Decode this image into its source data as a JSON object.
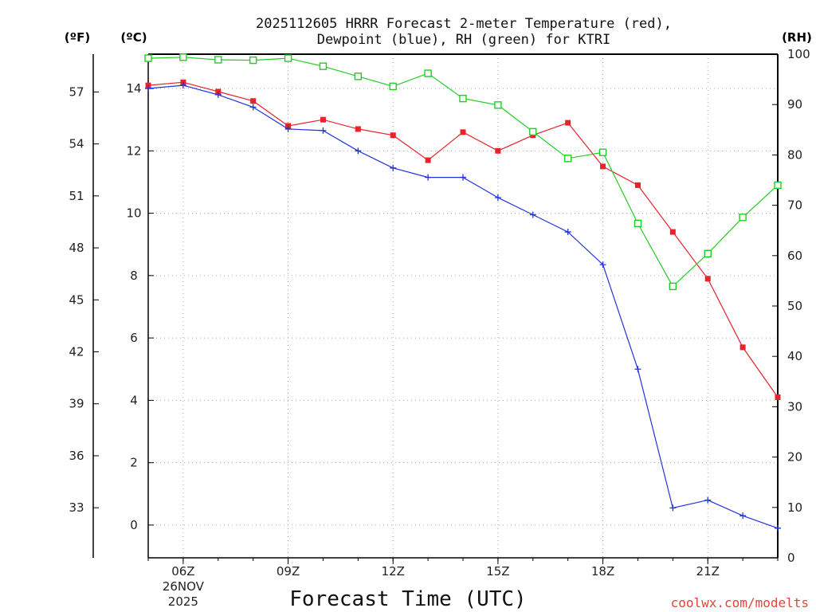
{
  "chart_data": {
    "type": "line",
    "title_lines": [
      "2025112605 HRRR Forecast 2-meter Temperature (red),",
      "Dewpoint (blue), RH (green) for KTRI"
    ],
    "xlabel": "Forecast Time (UTC)",
    "credit": "coolwx.com/modelts",
    "x_hours": [
      5,
      6,
      7,
      8,
      9,
      10,
      11,
      12,
      13,
      14,
      15,
      16,
      17,
      18,
      19,
      20,
      21,
      22,
      23
    ],
    "xlim": [
      5,
      23
    ],
    "x_ticks": [
      {
        "hour": 6,
        "label": "06Z",
        "sub1": "26NOV",
        "sub2": "2025"
      },
      {
        "hour": 9,
        "label": "09Z"
      },
      {
        "hour": 12,
        "label": "12Z"
      },
      {
        "hour": 15,
        "label": "15Z"
      },
      {
        "hour": 18,
        "label": "18Z"
      },
      {
        "hour": 21,
        "label": "21Z"
      }
    ],
    "y_celsius": {
      "unit_label": "(ºC)",
      "range": [
        -1.05,
        15.1
      ],
      "ticks": [
        0,
        2,
        4,
        6,
        8,
        10,
        12,
        14
      ]
    },
    "y_fahrenheit": {
      "unit_label": "(ºF)",
      "ticks": [
        33,
        36,
        39,
        42,
        45,
        48,
        51,
        54,
        57
      ]
    },
    "y_rh": {
      "unit_label": "(RH)",
      "range": [
        0,
        100
      ],
      "ticks": [
        0,
        10,
        20,
        30,
        40,
        50,
        60,
        70,
        80,
        90,
        100
      ]
    },
    "series": [
      {
        "name": "Temperature",
        "unit": "C",
        "color": "#e8232b",
        "marker": "filled-square",
        "values": [
          14.1,
          14.2,
          13.9,
          13.6,
          12.8,
          13.0,
          12.7,
          12.5,
          11.7,
          12.6,
          12.0,
          12.5,
          12.9,
          11.5,
          10.9,
          9.4,
          7.9,
          5.7,
          4.1
        ]
      },
      {
        "name": "Dewpoint",
        "unit": "C",
        "color": "#2233dd",
        "marker": "plus",
        "values": [
          14.0,
          14.1,
          13.8,
          13.4,
          12.7,
          12.65,
          12.0,
          11.45,
          11.15,
          11.15,
          10.5,
          9.95,
          9.4,
          8.35,
          5.0,
          0.55,
          0.8,
          0.3,
          -0.1
        ]
      },
      {
        "name": "RH",
        "unit": "%",
        "color": "#22cc22",
        "marker": "open-square",
        "values": [
          99.2,
          99.4,
          98.9,
          98.8,
          99.2,
          97.6,
          95.6,
          93.6,
          96.2,
          91.2,
          89.9,
          84.6,
          79.3,
          80.5,
          66.4,
          53.9,
          60.4,
          67.6,
          74.0
        ]
      }
    ]
  }
}
